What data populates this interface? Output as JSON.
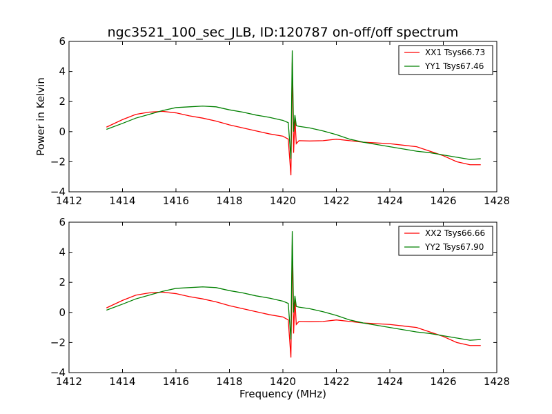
{
  "title": "ngc3521_100_sec_JLB, ID:120787 on-off/off spectrum",
  "chart_data": [
    {
      "type": "line",
      "xlabel": "",
      "ylabel": "Power in Kelvin",
      "xlim": [
        1412,
        1428
      ],
      "ylim": [
        -4,
        6
      ],
      "xticks": [
        "1412",
        "1414",
        "1416",
        "1418",
        "1420",
        "1422",
        "1424",
        "1426",
        "1428"
      ],
      "yticks": [
        "−4",
        "−2",
        "0",
        "2",
        "4",
        "6"
      ],
      "legend_position": "top-right",
      "grid": false,
      "series": [
        {
          "name": "XX1 Tsys66.73",
          "color": "#ff0000",
          "x": [
            1413.4,
            1414.0,
            1414.5,
            1415.0,
            1415.5,
            1416.0,
            1416.5,
            1417.0,
            1417.5,
            1418.0,
            1418.5,
            1419.0,
            1419.5,
            1420.0,
            1420.2,
            1420.3,
            1420.35,
            1420.4,
            1420.45,
            1420.5,
            1420.6,
            1421.0,
            1421.5,
            1422.0,
            1422.5,
            1423.0,
            1423.5,
            1424.0,
            1424.5,
            1425.0,
            1425.5,
            1426.0,
            1426.5,
            1427.0,
            1427.4
          ],
          "y": [
            0.3,
            0.8,
            1.15,
            1.3,
            1.35,
            1.25,
            1.05,
            0.9,
            0.7,
            0.45,
            0.25,
            0.05,
            -0.15,
            -0.3,
            -0.5,
            -2.9,
            4.6,
            -1.4,
            0.9,
            -0.8,
            -0.6,
            -0.62,
            -0.6,
            -0.5,
            -0.6,
            -0.7,
            -0.75,
            -0.8,
            -0.9,
            -1.0,
            -1.3,
            -1.6,
            -2.0,
            -2.2,
            -2.2
          ]
        },
        {
          "name": "YY1 Tsys67.46",
          "color": "#008000",
          "x": [
            1413.4,
            1414.0,
            1414.5,
            1415.0,
            1415.5,
            1416.0,
            1416.5,
            1417.0,
            1417.5,
            1418.0,
            1418.5,
            1419.0,
            1419.5,
            1420.0,
            1420.2,
            1420.3,
            1420.35,
            1420.4,
            1420.45,
            1420.5,
            1420.6,
            1421.0,
            1421.5,
            1422.0,
            1422.5,
            1423.0,
            1423.5,
            1424.0,
            1424.5,
            1425.0,
            1425.5,
            1426.0,
            1426.5,
            1427.0,
            1427.4
          ],
          "y": [
            0.15,
            0.55,
            0.9,
            1.15,
            1.4,
            1.6,
            1.65,
            1.7,
            1.65,
            1.45,
            1.3,
            1.1,
            0.95,
            0.75,
            0.6,
            -1.8,
            5.4,
            0.0,
            1.1,
            0.4,
            0.35,
            0.25,
            0.05,
            -0.2,
            -0.5,
            -0.7,
            -0.85,
            -1.0,
            -1.15,
            -1.3,
            -1.4,
            -1.55,
            -1.7,
            -1.85,
            -1.8
          ]
        }
      ]
    },
    {
      "type": "line",
      "xlabel": "Frequency (MHz)",
      "ylabel": "",
      "xlim": [
        1412,
        1428
      ],
      "ylim": [
        -4,
        6
      ],
      "xticks": [
        "1412",
        "1414",
        "1416",
        "1418",
        "1420",
        "1422",
        "1424",
        "1426",
        "1428"
      ],
      "yticks": [
        "−4",
        "−2",
        "0",
        "2",
        "4",
        "6"
      ],
      "legend_position": "top-right",
      "grid": false,
      "series": [
        {
          "name": "XX2 Tsys66.66",
          "color": "#ff0000",
          "x": [
            1413.4,
            1414.0,
            1414.5,
            1415.0,
            1415.5,
            1416.0,
            1416.5,
            1417.0,
            1417.5,
            1418.0,
            1418.5,
            1419.0,
            1419.5,
            1420.0,
            1420.2,
            1420.3,
            1420.35,
            1420.4,
            1420.45,
            1420.5,
            1420.6,
            1421.0,
            1421.5,
            1422.0,
            1422.5,
            1423.0,
            1423.5,
            1424.0,
            1424.5,
            1425.0,
            1425.5,
            1426.0,
            1426.5,
            1427.0,
            1427.4
          ],
          "y": [
            0.3,
            0.8,
            1.15,
            1.3,
            1.35,
            1.25,
            1.05,
            0.9,
            0.7,
            0.45,
            0.25,
            0.05,
            -0.15,
            -0.3,
            -0.5,
            -3.0,
            4.5,
            -1.4,
            0.9,
            -0.8,
            -0.6,
            -0.62,
            -0.6,
            -0.5,
            -0.6,
            -0.7,
            -0.75,
            -0.8,
            -0.9,
            -1.0,
            -1.3,
            -1.6,
            -2.0,
            -2.2,
            -2.2
          ]
        },
        {
          "name": "YY2 Tsys67.90",
          "color": "#008000",
          "x": [
            1413.4,
            1414.0,
            1414.5,
            1415.0,
            1415.5,
            1416.0,
            1416.5,
            1417.0,
            1417.5,
            1418.0,
            1418.5,
            1419.0,
            1419.5,
            1420.0,
            1420.2,
            1420.3,
            1420.35,
            1420.4,
            1420.45,
            1420.5,
            1420.6,
            1421.0,
            1421.5,
            1422.0,
            1422.5,
            1423.0,
            1423.5,
            1424.0,
            1424.5,
            1425.0,
            1425.5,
            1426.0,
            1426.5,
            1427.0,
            1427.4
          ],
          "y": [
            0.15,
            0.55,
            0.9,
            1.15,
            1.4,
            1.6,
            1.65,
            1.7,
            1.65,
            1.45,
            1.3,
            1.1,
            0.95,
            0.75,
            0.6,
            -1.8,
            5.4,
            0.0,
            1.1,
            0.4,
            0.35,
            0.25,
            0.05,
            -0.2,
            -0.5,
            -0.7,
            -0.85,
            -1.0,
            -1.15,
            -1.3,
            -1.4,
            -1.55,
            -1.7,
            -1.85,
            -1.8
          ]
        }
      ]
    }
  ]
}
